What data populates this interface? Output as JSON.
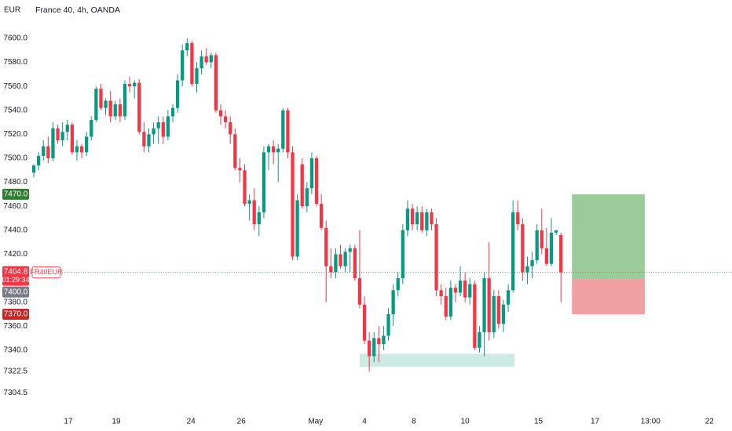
{
  "chart_data": {
    "type": "candlestick",
    "title": "France 40, 4h, OANDA",
    "currency": "EUR",
    "symbol": "FR40EUR",
    "up_color": "#089981",
    "down_color": "#f23645",
    "grid": false,
    "open": [
      7488,
      7494,
      7502,
      7510,
      7500,
      7525,
      7515,
      7522,
      7528,
      7505,
      7510,
      7505,
      7518,
      7532,
      7558,
      7542,
      7548,
      7535,
      7545,
      7535,
      7562,
      7560,
      7563,
      7522,
      7510,
      7520,
      7525,
      7530,
      7518,
      7535,
      7542,
      7565,
      7590,
      7596,
      7562,
      7575,
      7585,
      7580,
      7586,
      7540,
      7535,
      7530,
      7520,
      7492,
      7490,
      7462,
      7465,
      7445,
      7455,
      7505,
      7510,
      7505,
      7508,
      7540,
      7505,
      7418,
      7495,
      7460,
      7475,
      7500,
      7462,
      7442,
      7410,
      7405,
      7420,
      7410,
      7422,
      7425,
      7400,
      7378,
      7348,
      7335,
      7350,
      7345,
      7352,
      7370,
      7390,
      7400,
      7440,
      7458,
      7445,
      7455,
      7440,
      7455,
      7445,
      7390,
      7385,
      7368,
      7392,
      7388,
      7398,
      7384,
      7395,
      7342,
      7355,
      7400,
      7355,
      7385,
      7362,
      7378,
      7390,
      7455,
      7445,
      7405,
      7410,
      7415,
      7440,
      7425,
      7412,
      7438,
      7436
    ],
    "high": [
      7495,
      7505,
      7515,
      7518,
      7530,
      7528,
      7530,
      7532,
      7530,
      7515,
      7512,
      7522,
      7535,
      7560,
      7562,
      7550,
      7556,
      7548,
      7550,
      7565,
      7568,
      7565,
      7566,
      7530,
      7525,
      7530,
      7535,
      7535,
      7540,
      7545,
      7570,
      7595,
      7600,
      7598,
      7580,
      7590,
      7592,
      7588,
      7588,
      7545,
      7540,
      7535,
      7525,
      7500,
      7495,
      7470,
      7475,
      7460,
      7510,
      7512,
      7515,
      7512,
      7542,
      7542,
      7510,
      7470,
      7500,
      7480,
      7505,
      7502,
      7470,
      7448,
      7425,
      7425,
      7428,
      7425,
      7428,
      7428,
      7440,
      7385,
      7355,
      7355,
      7360,
      7360,
      7375,
      7395,
      7405,
      7445,
      7465,
      7462,
      7460,
      7460,
      7458,
      7458,
      7450,
      7395,
      7392,
      7398,
      7395,
      7410,
      7405,
      7400,
      7398,
      7360,
      7405,
      7430,
      7390,
      7390,
      7382,
      7395,
      7465,
      7465,
      7450,
      7418,
      7422,
      7445,
      7458,
      7442,
      7450,
      7440,
      7438
    ],
    "low": [
      7484,
      7490,
      7498,
      7496,
      7498,
      7512,
      7510,
      7515,
      7503,
      7498,
      7500,
      7502,
      7515,
      7530,
      7540,
      7536,
      7530,
      7532,
      7530,
      7532,
      7555,
      7550,
      7520,
      7505,
      7505,
      7512,
      7512,
      7512,
      7515,
      7530,
      7538,
      7560,
      7585,
      7560,
      7555,
      7570,
      7578,
      7575,
      7538,
      7528,
      7525,
      7512,
      7490,
      7480,
      7460,
      7448,
      7440,
      7435,
      7450,
      7490,
      7495,
      7480,
      7505,
      7500,
      7415,
      7415,
      7458,
      7455,
      7470,
      7460,
      7440,
      7380,
      7400,
      7400,
      7408,
      7405,
      7405,
      7398,
      7375,
      7345,
      7322,
      7330,
      7330,
      7340,
      7348,
      7360,
      7385,
      7395,
      7435,
      7440,
      7440,
      7438,
      7435,
      7440,
      7385,
      7378,
      7365,
      7365,
      7380,
      7385,
      7380,
      7378,
      7340,
      7338,
      7335,
      7348,
      7350,
      7358,
      7355,
      7372,
      7388,
      7440,
      7398,
      7395,
      7400,
      7412,
      7420,
      7410,
      7410,
      7436,
      7380
    ],
    "close": [
      7494,
      7502,
      7510,
      7500,
      7525,
      7515,
      7522,
      7528,
      7505,
      7510,
      7505,
      7518,
      7532,
      7558,
      7542,
      7548,
      7535,
      7545,
      7535,
      7562,
      7560,
      7563,
      7522,
      7510,
      7520,
      7525,
      7530,
      7518,
      7535,
      7542,
      7565,
      7590,
      7596,
      7562,
      7575,
      7585,
      7580,
      7586,
      7540,
      7535,
      7530,
      7520,
      7492,
      7490,
      7462,
      7465,
      7445,
      7455,
      7505,
      7510,
      7505,
      7508,
      7540,
      7505,
      7418,
      7465,
      7460,
      7475,
      7500,
      7462,
      7442,
      7410,
      7405,
      7420,
      7410,
      7422,
      7425,
      7400,
      7378,
      7348,
      7335,
      7350,
      7345,
      7352,
      7370,
      7390,
      7400,
      7440,
      7458,
      7445,
      7455,
      7440,
      7455,
      7445,
      7390,
      7385,
      7368,
      7392,
      7388,
      7398,
      7384,
      7395,
      7342,
      7355,
      7400,
      7355,
      7385,
      7362,
      7378,
      7390,
      7455,
      7445,
      7405,
      7410,
      7415,
      7440,
      7425,
      7412,
      7438,
      7440,
      7404.8
    ],
    "ylim": [
      7292.2,
      7632.0
    ],
    "yticks": [
      {
        "value": 7600,
        "label": "7600.0"
      },
      {
        "value": 7580,
        "label": "7580.0"
      },
      {
        "value": 7560,
        "label": "7560.0"
      },
      {
        "value": 7540,
        "label": "7540.0"
      },
      {
        "value": 7520,
        "label": "7520.0"
      },
      {
        "value": 7500,
        "label": "7500.0"
      },
      {
        "value": 7480,
        "label": "7480.0"
      },
      {
        "value": 7460,
        "label": "7460.0"
      },
      {
        "value": 7440,
        "label": "7440.0"
      },
      {
        "value": 7420,
        "label": "7420.0"
      },
      {
        "value": 7380,
        "label": "7380.0"
      },
      {
        "value": 7360,
        "label": "7360.0"
      },
      {
        "value": 7340,
        "label": "7340.0"
      },
      {
        "value": 7322.5,
        "label": "7322.5"
      },
      {
        "value": 7304.5,
        "label": "7304.5"
      }
    ],
    "xlim": [
      -0.5,
      145.7
    ],
    "xticks": [
      {
        "value": 7.2,
        "label": "17"
      },
      {
        "value": 17.2,
        "label": "19"
      },
      {
        "value": 32.8,
        "label": "24"
      },
      {
        "value": 43.3,
        "label": "26"
      },
      {
        "value": 58.8,
        "label": "May"
      },
      {
        "value": 69.0,
        "label": "4"
      },
      {
        "value": 79.3,
        "label": "8"
      },
      {
        "value": 90.0,
        "label": "10"
      },
      {
        "value": 105.3,
        "label": "15"
      },
      {
        "value": 117.1,
        "label": "17"
      },
      {
        "value": 128.7,
        "label": "13:00"
      },
      {
        "value": 141.0,
        "label": "22"
      }
    ],
    "last_price": 7404.8,
    "countdown": "01:29:34",
    "position": {
      "x": [
        112.3,
        127.5
      ],
      "target": {
        "value": 7470,
        "label": "7470.0"
      },
      "entry": {
        "value": 7400,
        "label": "7400.0"
      },
      "stop": {
        "value": 7370,
        "label": "7370.0"
      }
    },
    "support_zone": {
      "x": [
        68.0,
        100.3
      ],
      "y": [
        7326,
        7337
      ]
    }
  }
}
